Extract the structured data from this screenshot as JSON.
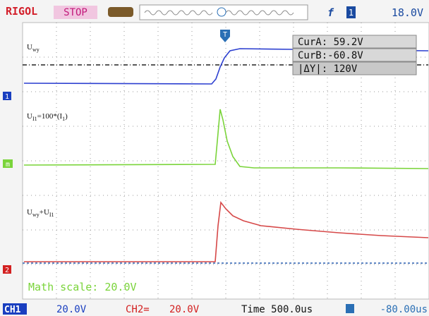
{
  "top_bar": {
    "brand": "RIGOL",
    "status": "STOP",
    "trigger_channel": "1",
    "trigger_level": "18.0V"
  },
  "cursors": {
    "cur_a": "CurA: 59.2V",
    "cur_b": "CurB:-60.8V",
    "delta": "|ΔY|: 120V"
  },
  "trace_labels": [
    [
      "U",
      "wy"
    ],
    [
      "U",
      "I1",
      "=100*(I",
      "1",
      ")"
    ],
    [
      "U",
      "wy",
      "+U",
      "I1"
    ]
  ],
  "markers": {
    "ch1": "1",
    "math": "m",
    "ch2": "2",
    "trigger": "T"
  },
  "math_scale": "Math scale: 20.0V",
  "bottom_bar": {
    "ch1_label": "CH1",
    "ch1_scale": "20.0V",
    "ch2_label": "CH2=",
    "ch2_scale": "20.0V",
    "time": "Time 500.0us",
    "offset": "-80.00us"
  }
}
